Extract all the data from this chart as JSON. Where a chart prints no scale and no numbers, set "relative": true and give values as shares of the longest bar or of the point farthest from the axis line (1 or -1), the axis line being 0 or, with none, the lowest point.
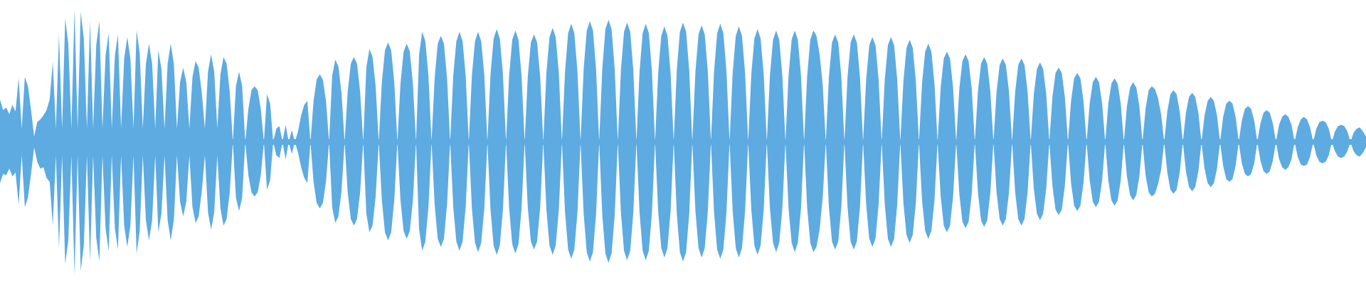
{
  "chart_data": {
    "type": "area",
    "relative": true,
    "categories": [
      null,
      null,
      null,
      null,
      null,
      null,
      null,
      null,
      null,
      null,
      null,
      null,
      null,
      null,
      null,
      null,
      null,
      null,
      null,
      null,
      null,
      null,
      null,
      null,
      null,
      null,
      null,
      null,
      null,
      null,
      null,
      null,
      null,
      null,
      null,
      null,
      null,
      null,
      null,
      null,
      null,
      null,
      null,
      null,
      null,
      null,
      null,
      null,
      null,
      null,
      null,
      null,
      null,
      null,
      null,
      null,
      null,
      null,
      null,
      null,
      null,
      null,
      null,
      null,
      null,
      null,
      null,
      null,
      null,
      null,
      null,
      null,
      null,
      null,
      null,
      null,
      null,
      null,
      null,
      null,
      null,
      null,
      null,
      null,
      null,
      null,
      null,
      null,
      null,
      null,
      null,
      null,
      null,
      null,
      null,
      null,
      null,
      null,
      null,
      null,
      null,
      null,
      null,
      null,
      null,
      null,
      null,
      null,
      null,
      null,
      null,
      null,
      null,
      null,
      null,
      null,
      null,
      null,
      null,
      null,
      null,
      null,
      null,
      null,
      null,
      null,
      null,
      null,
      null,
      null,
      null,
      null,
      null,
      null,
      null,
      null,
      null,
      null,
      null,
      null,
      null,
      null,
      null,
      null,
      null,
      null,
      null,
      null,
      null,
      null,
      null,
      null,
      null,
      null,
      null,
      null,
      null,
      null,
      null,
      null,
      null,
      null,
      null,
      null,
      null,
      null,
      null,
      null,
      null,
      null,
      null,
      null,
      null,
      null,
      null,
      null,
      null,
      null,
      null,
      null,
      null,
      null,
      null,
      null,
      null,
      null,
      null,
      null,
      null,
      null,
      null,
      null,
      null,
      null,
      null,
      null,
      null,
      null,
      null,
      null,
      null,
      null,
      null,
      null,
      null,
      null,
      null,
      null,
      null,
      null,
      null,
      null,
      null,
      null,
      null,
      null,
      null,
      null,
      null,
      null,
      null,
      null,
      null,
      null,
      null,
      null,
      null,
      null,
      null,
      null,
      null,
      null,
      null,
      null,
      null,
      null,
      null,
      null,
      null,
      null,
      null,
      null,
      null,
      null,
      null,
      null,
      null,
      null,
      null,
      null,
      null,
      null,
      null,
      null,
      null,
      null,
      null,
      null,
      null,
      null,
      null,
      null,
      null,
      null,
      null,
      null,
      null,
      null,
      null,
      null,
      null,
      null,
      null,
      null,
      null,
      null,
      null,
      null,
      null,
      null,
      null,
      null,
      null,
      null,
      null,
      null,
      null,
      null,
      null,
      null,
      null,
      null,
      null,
      null,
      null,
      null,
      null,
      null,
      null,
      null,
      null,
      null,
      null,
      null,
      null,
      null,
      null,
      null,
      null,
      null,
      null,
      null,
      null,
      null,
      null,
      null,
      null,
      null,
      null,
      null,
      null,
      null,
      null,
      null,
      null,
      null,
      null,
      null,
      null,
      null,
      null,
      null,
      null,
      null,
      null,
      null,
      null,
      null,
      null,
      null,
      null,
      null,
      null,
      null,
      null,
      null,
      null,
      null,
      null,
      null,
      null,
      null,
      null,
      null,
      null,
      null,
      null,
      null,
      null,
      null,
      null,
      null,
      null,
      null,
      null,
      null,
      null,
      null,
      null,
      null,
      null,
      null,
      null,
      null,
      null,
      null,
      null,
      null,
      null,
      null,
      null,
      null,
      null,
      null,
      null,
      null,
      null,
      null,
      null,
      null,
      null,
      null,
      null,
      null,
      null,
      null,
      null,
      null,
      null,
      null,
      null,
      null,
      null,
      null,
      null,
      null,
      null,
      null,
      null,
      null,
      null,
      null,
      null,
      null,
      null,
      null,
      null,
      null,
      null,
      null,
      null,
      null,
      null,
      null,
      null,
      null,
      null,
      null,
      null,
      null,
      null,
      null,
      null,
      null,
      null,
      null,
      null,
      null,
      null,
      null,
      null
    ],
    "series": [
      {
        "color": "#5dabe1",
        "values": [
          0.32,
          0.24,
          0.26,
          0.21,
          0.28,
          0.23,
          0.48,
          0.1,
          0.49,
          0.42,
          0.24,
          0.04,
          0.15,
          0.17,
          0.2,
          0.24,
          0.32,
          0.6,
          0.1,
          0.81,
          0.1,
          0.93,
          0.74,
          0.1,
          1.0,
          0.1,
          0.98,
          0.78,
          0.1,
          0.91,
          0.1,
          0.73,
          0.91,
          0.1,
          0.65,
          0.82,
          0.1,
          0.65,
          0.81,
          0.1,
          0.63,
          0.79,
          0.63,
          0.1,
          0.84,
          0.67,
          0.1,
          0.59,
          0.74,
          0.59,
          0.1,
          0.69,
          0.55,
          0.1,
          0.59,
          0.74,
          0.59,
          0.1,
          0.45,
          0.56,
          0.45,
          0.1,
          0.49,
          0.61,
          0.56,
          0.37,
          0.1,
          0.53,
          0.66,
          0.53,
          0.1,
          0.51,
          0.64,
          0.59,
          0.38,
          0,
          0.42,
          0.53,
          0.42,
          0,
          0.25,
          0.39,
          0.42,
          0.39,
          0.25,
          0,
          0.36,
          0.29,
          0,
          0.1,
          0.12,
          0,
          0.13,
          0,
          0.09,
          0,
          0.08,
          0.2,
          0.28,
          0.31,
          0,
          0.31,
          0.47,
          0.51,
          0.47,
          0.31,
          0,
          0.5,
          0.62,
          0.57,
          0.37,
          0,
          0.38,
          0.59,
          0.64,
          0.59,
          0.38,
          0,
          0.56,
          0.7,
          0.64,
          0.42,
          0,
          0.45,
          0.69,
          0.75,
          0.69,
          0.45,
          0,
          0.44,
          0.68,
          0.74,
          0.68,
          0.44,
          0,
          0.66,
          0.83,
          0.76,
          0.5,
          0,
          0.48,
          0.74,
          0.8,
          0.74,
          0.48,
          0,
          0.5,
          0.76,
          0.83,
          0.76,
          0.5,
          0,
          0.5,
          0.76,
          0.83,
          0.76,
          0.5,
          0,
          0.51,
          0.78,
          0.85,
          0.78,
          0.51,
          0,
          0.5,
          0.77,
          0.84,
          0.77,
          0.5,
          0,
          0.49,
          0.75,
          0.81,
          0.75,
          0.49,
          0,
          0.52,
          0.79,
          0.86,
          0.79,
          0.52,
          0,
          0.53,
          0.82,
          0.89,
          0.82,
          0.53,
          0,
          0.55,
          0.84,
          0.91,
          0.84,
          0.55,
          0,
          0.55,
          0.85,
          0.92,
          0.85,
          0.55,
          0,
          0.54,
          0.83,
          0.9,
          0.83,
          0.54,
          0,
          0.53,
          0.82,
          0.89,
          0.82,
          0.53,
          0,
          0.52,
          0.8,
          0.87,
          0.8,
          0.52,
          0,
          0.54,
          0.83,
          0.9,
          0.83,
          0.54,
          0,
          0.53,
          0.81,
          0.88,
          0.81,
          0.53,
          0,
          0.53,
          0.82,
          0.89,
          0.82,
          0.53,
          0,
          0.52,
          0.8,
          0.87,
          0.8,
          0.52,
          0,
          0.51,
          0.78,
          0.85,
          0.78,
          0.51,
          0,
          0.5,
          0.77,
          0.84,
          0.77,
          0.5,
          0,
          0.5,
          0.77,
          0.84,
          0.77,
          0.5,
          0,
          0.5,
          0.77,
          0.84,
          0.8,
          0.66,
          0.43,
          0,
          0.49,
          0.75,
          0.81,
          0.75,
          0.49,
          0,
          0.49,
          0.75,
          0.81,
          0.75,
          0.49,
          0,
          0.47,
          0.73,
          0.79,
          0.73,
          0.47,
          0,
          0.47,
          0.73,
          0.79,
          0.73,
          0.47,
          0,
          0.46,
          0.71,
          0.77,
          0.71,
          0.46,
          0,
          0.44,
          0.68,
          0.74,
          0.68,
          0.44,
          0,
          0.41,
          0.63,
          0.68,
          0.63,
          0.41,
          0,
          0.4,
          0.61,
          0.66,
          0.61,
          0.4,
          0,
          0.38,
          0.59,
          0.64,
          0.59,
          0.38,
          0,
          0.38,
          0.58,
          0.63,
          0.58,
          0.38,
          0,
          0.38,
          0.58,
          0.63,
          0.58,
          0.38,
          0,
          0.36,
          0.55,
          0.6,
          0.55,
          0.36,
          0,
          0.34,
          0.52,
          0.56,
          0.52,
          0.34,
          0,
          0.31,
          0.48,
          0.52,
          0.48,
          0.31,
          0,
          0.29,
          0.45,
          0.49,
          0.45,
          0.29,
          0,
          0.29,
          0.44,
          0.48,
          0.44,
          0.29,
          0,
          0.27,
          0.41,
          0.45,
          0.41,
          0.27,
          0,
          0.25,
          0.39,
          0.42,
          0.4,
          0.33,
          0.21,
          0,
          0.23,
          0.36,
          0.39,
          0.36,
          0.23,
          0,
          0.22,
          0.34,
          0.37,
          0.34,
          0.22,
          0,
          0.2,
          0.31,
          0.34,
          0.31,
          0.2,
          0,
          0.19,
          0.29,
          0.31,
          0.29,
          0.19,
          0,
          0.16,
          0.25,
          0.27,
          0.25,
          0.16,
          0,
          0.14,
          0.22,
          0.24,
          0.22,
          0.14,
          0,
          0.13,
          0.19,
          0.21,
          0.19,
          0.13,
          0,
          0.11,
          0.17,
          0.19,
          0.17,
          0.11,
          0,
          0.1,
          0.15,
          0.16,
          0.15,
          0.1,
          0,
          0.08,
          0.12,
          0.13,
          0.12,
          0.08,
          0,
          0.07,
          0.1,
          0.11,
          0.08,
          0.04
        ]
      },
      {
        "color": "#5dabe1",
        "values": [
          -0.31,
          -0.24,
          -0.25,
          -0.2,
          -0.26,
          -0.23,
          -0.47,
          -0.1,
          -0.49,
          -0.42,
          -0.24,
          -0.04,
          -0.15,
          -0.2,
          -0.19,
          -0.27,
          -0.3,
          -0.63,
          -0.1,
          -0.8,
          -0.1,
          -0.92,
          -0.74,
          -0.1,
          -1.0,
          -0.1,
          -0.97,
          -0.78,
          -0.1,
          -0.9,
          -0.1,
          -0.72,
          -0.9,
          -0.1,
          -0.65,
          -0.82,
          -0.1,
          -0.65,
          -0.81,
          -0.1,
          -0.63,
          -0.79,
          -0.63,
          -0.1,
          -0.84,
          -0.67,
          -0.1,
          -0.59,
          -0.74,
          -0.59,
          -0.1,
          -0.68,
          -0.54,
          -0.1,
          -0.59,
          -0.74,
          -0.59,
          -0.1,
          -0.45,
          -0.56,
          -0.45,
          -0.1,
          -0.49,
          -0.61,
          -0.56,
          -0.37,
          -0.1,
          -0.53,
          -0.66,
          -0.53,
          -0.1,
          -0.5,
          -0.63,
          -0.58,
          -0.38,
          0,
          -0.42,
          -0.52,
          -0.42,
          0,
          -0.25,
          -0.38,
          -0.41,
          -0.38,
          -0.25,
          0,
          -0.36,
          -0.29,
          0,
          -0.1,
          -0.12,
          0,
          -0.13,
          0,
          -0.09,
          0,
          -0.08,
          -0.19,
          -0.27,
          -0.31,
          0,
          -0.3,
          -0.46,
          -0.5,
          -0.46,
          -0.3,
          0,
          -0.49,
          -0.61,
          -0.56,
          -0.37,
          0,
          -0.38,
          -0.58,
          -0.63,
          -0.58,
          -0.38,
          0,
          -0.54,
          -0.68,
          -0.63,
          -0.41,
          0,
          -0.44,
          -0.68,
          -0.74,
          -0.68,
          -0.44,
          0,
          -0.44,
          -0.67,
          -0.73,
          -0.67,
          -0.44,
          0,
          -0.66,
          -0.82,
          -0.75,
          -0.49,
          0,
          -0.47,
          -0.73,
          -0.79,
          -0.73,
          -0.47,
          0,
          -0.49,
          -0.75,
          -0.82,
          -0.75,
          -0.49,
          0,
          -0.5,
          -0.76,
          -0.83,
          -0.76,
          -0.5,
          0,
          -0.51,
          -0.78,
          -0.85,
          -0.78,
          -0.51,
          0,
          -0.5,
          -0.77,
          -0.84,
          -0.77,
          -0.5,
          0,
          -0.49,
          -0.75,
          -0.81,
          -0.75,
          -0.49,
          0,
          -0.51,
          -0.78,
          -0.85,
          -0.78,
          -0.51,
          0,
          -0.53,
          -0.81,
          -0.88,
          -0.81,
          -0.53,
          0,
          -0.54,
          -0.83,
          -0.9,
          -0.83,
          -0.54,
          0,
          -0.55,
          -0.84,
          -0.91,
          -0.84,
          -0.55,
          0,
          -0.53,
          -0.82,
          -0.89,
          -0.82,
          -0.53,
          0,
          -0.53,
          -0.82,
          -0.89,
          -0.82,
          -0.53,
          0,
          -0.52,
          -0.8,
          -0.87,
          -0.8,
          -0.52,
          0,
          -0.54,
          -0.83,
          -0.9,
          -0.83,
          -0.54,
          0,
          -0.52,
          -0.8,
          -0.87,
          -0.8,
          -0.52,
          0,
          -0.53,
          -0.81,
          -0.88,
          -0.81,
          -0.53,
          0,
          -0.52,
          -0.8,
          -0.87,
          -0.8,
          -0.52,
          0,
          -0.51,
          -0.78,
          -0.85,
          -0.78,
          -0.51,
          0,
          -0.5,
          -0.76,
          -0.83,
          -0.76,
          -0.5,
          0,
          -0.5,
          -0.76,
          -0.83,
          -0.76,
          -0.5,
          0,
          -0.5,
          -0.76,
          -0.83,
          -0.79,
          -0.66,
          -0.42,
          0,
          -0.49,
          -0.75,
          -0.81,
          -0.75,
          -0.49,
          0,
          -0.49,
          -0.75,
          -0.81,
          -0.75,
          -0.49,
          0,
          -0.47,
          -0.73,
          -0.79,
          -0.73,
          -0.47,
          0,
          -0.47,
          -0.73,
          -0.79,
          -0.73,
          -0.47,
          0,
          -0.46,
          -0.7,
          -0.76,
          -0.7,
          -0.46,
          0,
          -0.44,
          -0.67,
          -0.73,
          -0.67,
          -0.44,
          0,
          -0.41,
          -0.63,
          -0.68,
          -0.63,
          -0.41,
          0,
          -0.39,
          -0.6,
          -0.65,
          -0.6,
          -0.39,
          0,
          -0.38,
          -0.59,
          -0.64,
          -0.59,
          -0.38,
          0,
          -0.38,
          -0.58,
          -0.63,
          -0.58,
          -0.38,
          0,
          -0.38,
          -0.58,
          -0.63,
          -0.58,
          -0.38,
          0,
          -0.35,
          -0.54,
          -0.59,
          -0.54,
          -0.35,
          0,
          -0.33,
          -0.51,
          -0.55,
          -0.51,
          -0.33,
          0,
          -0.31,
          -0.48,
          -0.52,
          -0.48,
          -0.31,
          0,
          -0.29,
          -0.45,
          -0.49,
          -0.45,
          -0.29,
          0,
          -0.29,
          -0.44,
          -0.48,
          -0.44,
          -0.29,
          0,
          -0.26,
          -0.4,
          -0.44,
          -0.4,
          -0.26,
          0,
          -0.25,
          -0.38,
          -0.41,
          -0.39,
          -0.32,
          -0.21,
          0,
          -0.23,
          -0.36,
          -0.39,
          -0.36,
          -0.23,
          0,
          -0.22,
          -0.34,
          -0.37,
          -0.34,
          -0.22,
          0,
          -0.2,
          -0.31,
          -0.34,
          -0.31,
          -0.2,
          0,
          -0.18,
          -0.28,
          -0.3,
          -0.28,
          -0.18,
          0,
          -0.16,
          -0.24,
          -0.26,
          -0.24,
          -0.16,
          0,
          -0.14,
          -0.22,
          -0.24,
          -0.22,
          -0.14,
          0,
          -0.13,
          -0.19,
          -0.21,
          -0.19,
          -0.13,
          0,
          -0.11,
          -0.17,
          -0.18,
          -0.17,
          -0.11,
          0,
          -0.1,
          -0.15,
          -0.16,
          -0.15,
          -0.1,
          0,
          -0.07,
          -0.11,
          -0.12,
          -0.11,
          -0.07,
          0,
          -0.07,
          -0.1,
          -0.11,
          -0.08,
          -0.04
        ]
      }
    ],
    "ref_lines": [
      {
        "axis": "y",
        "value": 0,
        "color": "#5dabe1"
      }
    ]
  }
}
